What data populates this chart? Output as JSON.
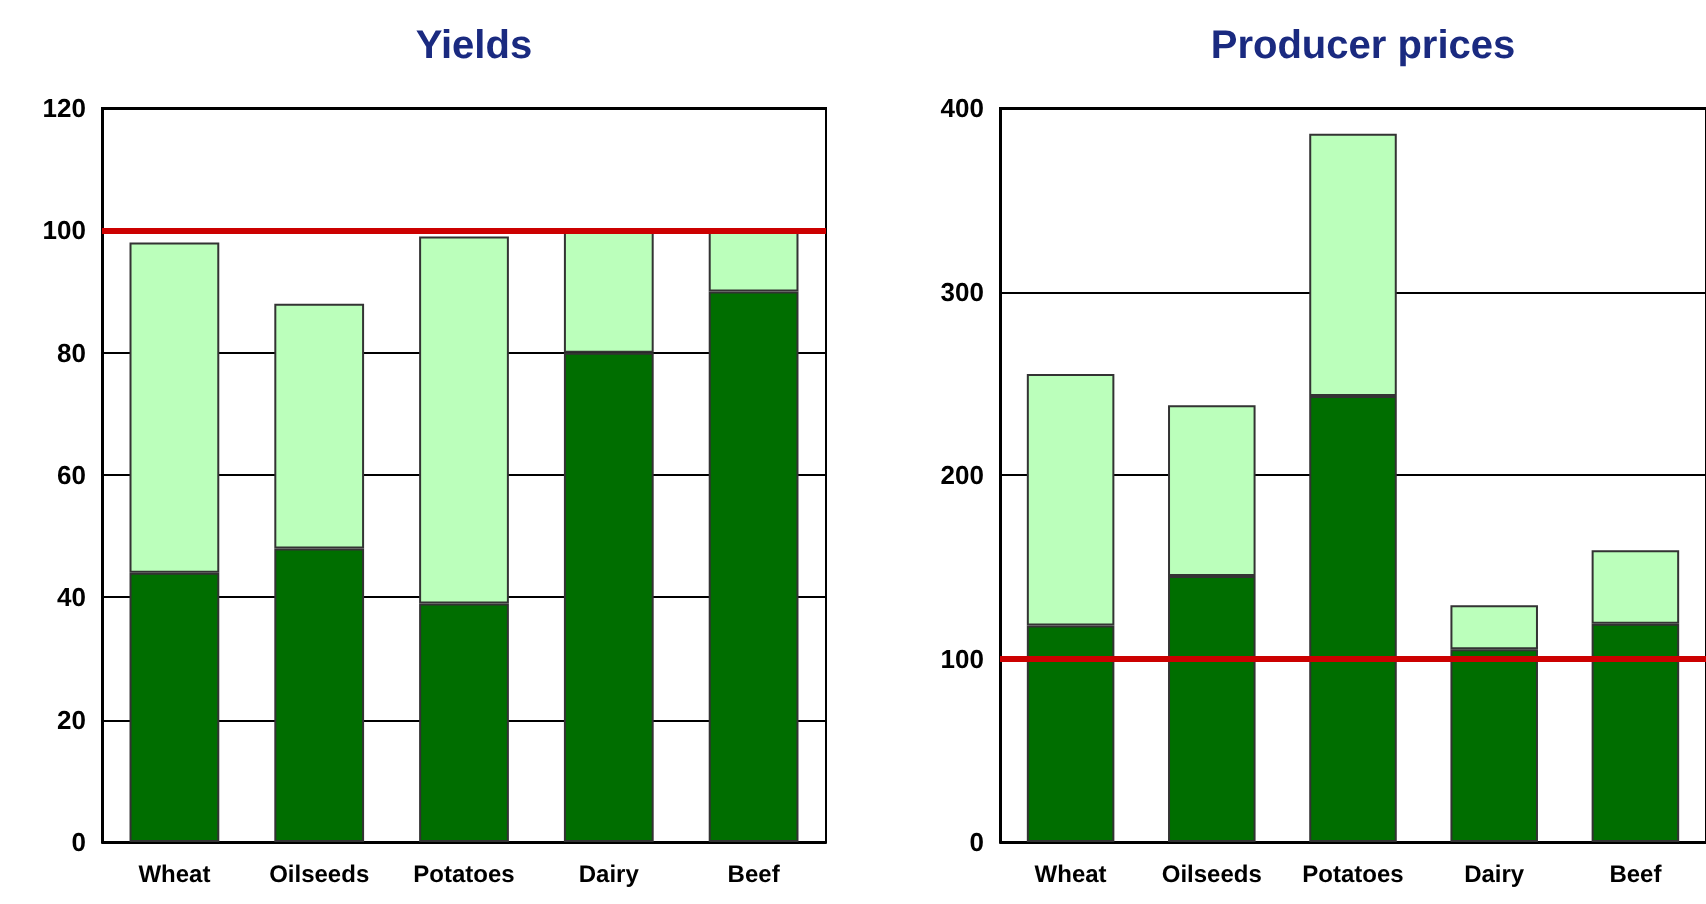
{
  "chart_data": [
    {
      "type": "bar",
      "title": "Yields",
      "categories": [
        "Wheat",
        "Oilseeds",
        "Potatoes",
        "Dairy",
        "Beef"
      ],
      "stacked": true,
      "series": [
        {
          "color": "#006e00",
          "values": [
            44,
            48,
            39,
            80,
            90
          ]
        },
        {
          "color": "#bbffbb",
          "values": [
            54,
            40,
            60,
            20,
            10
          ]
        }
      ],
      "ylim": [
        0,
        120
      ],
      "yticks": [
        0,
        20,
        40,
        60,
        80,
        100,
        120
      ],
      "grid": "y",
      "ref_lines": [
        {
          "axis": "y",
          "value": 100,
          "color": "#cc0000"
        }
      ]
    },
    {
      "type": "bar",
      "title": "Producer prices",
      "categories": [
        "Wheat",
        "Oilseeds",
        "Potatoes",
        "Dairy",
        "Beef"
      ],
      "stacked": true,
      "series": [
        {
          "color": "#006e00",
          "values": [
            118,
            145,
            243,
            105,
            119
          ]
        },
        {
          "color": "#bbffbb",
          "values": [
            137,
            93,
            143,
            24,
            40
          ]
        }
      ],
      "ylim": [
        0,
        400
      ],
      "yticks": [
        0,
        100,
        200,
        300,
        400
      ],
      "grid": "y",
      "ref_lines": [
        {
          "axis": "y",
          "value": 100,
          "color": "#cc0000"
        }
      ]
    }
  ]
}
